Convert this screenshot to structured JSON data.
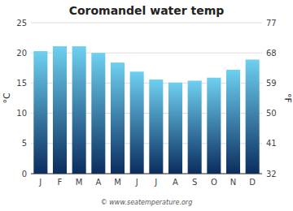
{
  "chart_data": {
    "type": "bar",
    "title": "Coromandel water temp",
    "categories": [
      "J",
      "F",
      "M",
      "A",
      "M",
      "J",
      "J",
      "A",
      "S",
      "O",
      "N",
      "D"
    ],
    "values": [
      20.3,
      21.1,
      21.1,
      20.0,
      18.4,
      16.9,
      15.6,
      15.1,
      15.4,
      15.9,
      17.2,
      18.9
    ],
    "color": [
      "#0a2d5e",
      "#6ed0f0"
    ],
    "ylabel": "°C",
    "y2label": "°F",
    "ylim": [
      0,
      25
    ],
    "yticks": [
      0,
      5,
      10,
      15,
      20,
      25
    ],
    "y2lim": [
      32,
      77
    ],
    "y2ticks": [
      32,
      41,
      50,
      59,
      68,
      77
    ],
    "grid": true,
    "annotations": [
      "© www.seatemperature.org"
    ]
  }
}
